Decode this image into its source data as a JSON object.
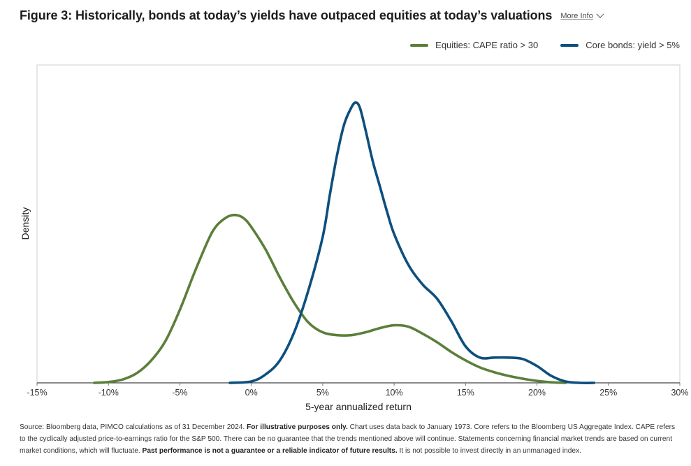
{
  "header": {
    "title": "Figure 3: Historically, bonds at today’s yields have outpaced equities at today’s valuations",
    "more_info_label": "More Info"
  },
  "legend": [
    {
      "label": "Equities: CAPE ratio > 30",
      "color": "#5b7f3a"
    },
    {
      "label": "Core bonds: yield > 5%",
      "color": "#0d4f7e"
    }
  ],
  "chart_data": {
    "type": "line",
    "title": "",
    "xlabel": "5-year annualized return",
    "ylabel": "Density",
    "xlim": [
      -15,
      30
    ],
    "ylim": [
      0,
      100
    ],
    "y_ticks_shown": false,
    "x_ticks": [
      {
        "value": -15,
        "label": "-15%"
      },
      {
        "value": -10,
        "label": "-10%"
      },
      {
        "value": -5,
        "label": "-5%"
      },
      {
        "value": 0,
        "label": "0%"
      },
      {
        "value": 5,
        "label": "5%"
      },
      {
        "value": 10,
        "label": "10%"
      },
      {
        "value": 15,
        "label": "15%"
      },
      {
        "value": 20,
        "label": "20%"
      },
      {
        "value": 25,
        "label": "25%"
      },
      {
        "value": 30,
        "label": "30%"
      }
    ],
    "grid": false,
    "legend_position": "top-right",
    "series": [
      {
        "name": "Equities: CAPE ratio > 30",
        "color": "#5b7f3a",
        "x": [
          -11,
          -10,
          -9,
          -8,
          -7,
          -6,
          -5,
          -4,
          -3,
          -2.5,
          -2,
          -1.5,
          -1,
          -0.5,
          0,
          1,
          2,
          3,
          4,
          5,
          6,
          7,
          8,
          9,
          10,
          11,
          12,
          13,
          14,
          15,
          16,
          17,
          18,
          19,
          20,
          21,
          22
        ],
        "y": [
          0,
          0.3,
          1.2,
          3.5,
          8,
          15,
          26,
          39,
          51,
          55.5,
          58,
          59.5,
          59.7,
          58.5,
          55.5,
          47.5,
          37.5,
          28.5,
          21.5,
          18,
          17,
          17,
          18,
          19.5,
          20.5,
          20,
          17.5,
          14.5,
          11,
          8,
          5.5,
          3.8,
          2.5,
          1.5,
          0.7,
          0.2,
          0
        ]
      },
      {
        "name": "Core bonds: yield > 5%",
        "color": "#0d4f7e",
        "x": [
          -1.5,
          0,
          1,
          2,
          3,
          4,
          5,
          5.5,
          6,
          6.5,
          7,
          7.3,
          7.6,
          8,
          8.5,
          9,
          9.5,
          10,
          11,
          12,
          13,
          14,
          15,
          16,
          17,
          18,
          19,
          20,
          21,
          22,
          23,
          24
        ],
        "y": [
          0,
          0.5,
          3,
          8,
          18,
          33,
          52,
          67,
          81,
          92,
          98,
          99.8,
          98,
          90,
          79,
          70,
          61,
          53,
          42,
          35,
          30,
          22,
          13,
          9,
          9,
          9,
          8.5,
          6,
          2.5,
          0.5,
          0,
          0
        ]
      }
    ]
  },
  "source": {
    "text1": "Source: Bloomberg data, PIMCO calculations as of 31 December 2024. ",
    "bold1": "For illustrative purposes only.",
    "text2": " Chart uses data back to January 1973. Core refers to the Bloomberg US Aggregate Index. CAPE refers to the cyclically adjusted price-to-earnings ratio for the S&P 500. There can be no guarantee that the trends mentioned above will continue. Statements concerning financial market trends are based on current market conditions, which will fluctuate. ",
    "bold2": "Past performance is not a guarantee or a reliable indicator of future results.",
    "text3": " It is not possible to invest directly in an unmanaged index."
  }
}
